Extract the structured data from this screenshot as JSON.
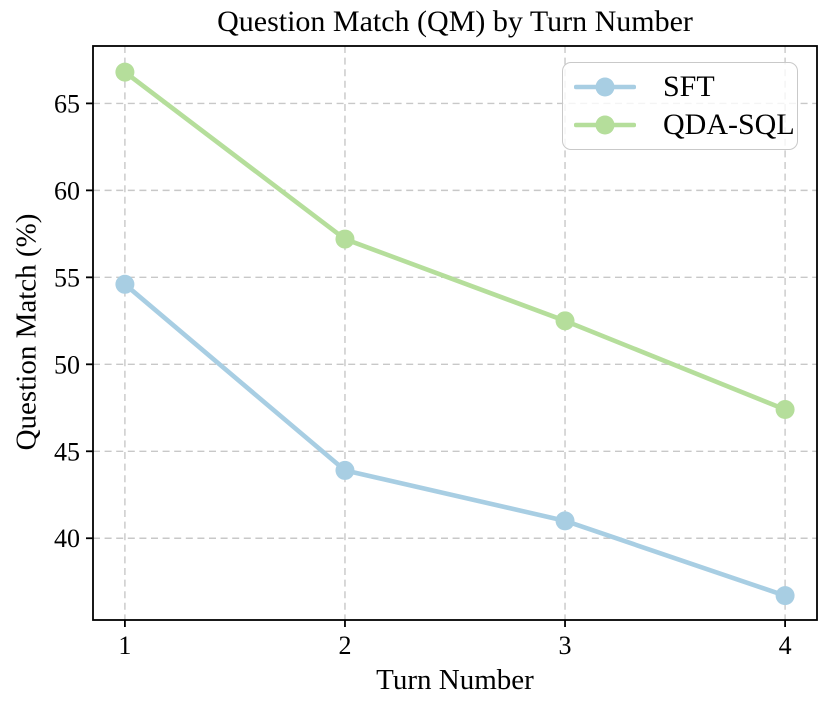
{
  "chart_data": {
    "type": "line",
    "title": "Question Match (QM) by Turn Number",
    "xlabel": "Turn Number",
    "ylabel": "Question Match (%)",
    "categories": [
      1,
      2,
      3,
      4
    ],
    "x_tick_labels": [
      "1",
      "2",
      "3",
      "4"
    ],
    "y_ticks": [
      40,
      45,
      50,
      55,
      60,
      65
    ],
    "y_tick_labels": [
      "40",
      "45",
      "50",
      "55",
      "60",
      "65"
    ],
    "xlim": [
      0.855,
      4.145
    ],
    "ylim": [
      35.3,
      68.3
    ],
    "grid": "dashed",
    "legend_position": "upper right",
    "series": [
      {
        "name": "SFT",
        "color": "#a8cee3",
        "values": [
          54.6,
          43.9,
          41.0,
          36.7
        ]
      },
      {
        "name": "QDA-SQL",
        "color": "#b5de9b",
        "values": [
          66.8,
          57.2,
          52.5,
          47.4
        ]
      }
    ],
    "grid_color": "#c8c8c8",
    "axis_color": "#000000",
    "background_color": "#ffffff"
  }
}
